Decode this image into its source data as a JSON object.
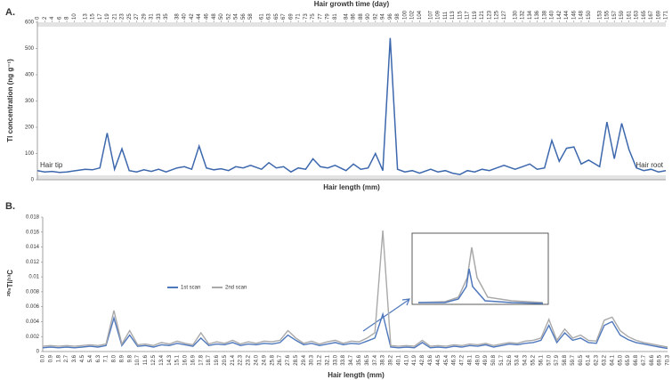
{
  "chart_data": [
    {
      "type": "line",
      "panel": "A.",
      "x2_label": "Hair growth time (day)",
      "x_label": "Hair length (mm)",
      "y_label": "Tl concentration (ng g⁻¹)",
      "annotations": [
        "Hair tip",
        "Hair root"
      ],
      "color": "#3d68ad",
      "x": [
        0,
        2,
        4,
        6,
        8,
        10,
        13,
        15,
        17,
        19,
        21,
        23,
        25,
        27,
        29,
        31,
        33,
        35,
        38,
        40,
        42,
        44,
        46,
        48,
        50,
        52,
        54,
        56,
        58,
        61,
        63,
        65,
        67,
        69,
        71,
        73,
        75,
        77,
        79,
        81,
        84,
        86,
        88,
        90,
        92,
        94,
        96,
        98,
        100,
        102,
        104,
        107,
        109,
        111,
        113,
        115,
        117,
        119,
        121,
        123,
        125,
        127,
        130,
        132,
        134,
        136,
        138,
        140,
        142,
        144,
        146,
        148,
        150,
        153,
        155,
        157,
        159,
        161,
        163,
        165,
        167,
        169,
        171
      ],
      "values": [
        35,
        30,
        32,
        28,
        30,
        34,
        40,
        38,
        45,
        178,
        40,
        118,
        35,
        30,
        38,
        32,
        40,
        30,
        45,
        50,
        40,
        128,
        45,
        38,
        42,
        35,
        50,
        45,
        55,
        40,
        65,
        45,
        50,
        30,
        45,
        40,
        80,
        50,
        45,
        55,
        35,
        60,
        40,
        45,
        100,
        35,
        540,
        40,
        30,
        35,
        25,
        40,
        30,
        35,
        25,
        20,
        35,
        30,
        40,
        35,
        45,
        55,
        40,
        50,
        60,
        40,
        45,
        150,
        70,
        120,
        125,
        60,
        75,
        50,
        220,
        80,
        215,
        115,
        45,
        35,
        40,
        30,
        35
      ],
      "xlim": [
        0,
        171
      ],
      "ylim": [
        0,
        600
      ],
      "yticks": [
        0,
        100,
        200,
        300,
        400,
        500,
        600
      ]
    },
    {
      "type": "line",
      "panel": "B.",
      "x_label": "Hair length (mm)",
      "y_label": "²⁰⁵Tl/¹³C",
      "categories": [
        "0.0",
        "0.9",
        "1.8",
        "2.7",
        "3.6",
        "4.5",
        "5.4",
        "6.3",
        "7.1",
        "8.0",
        "8.9",
        "9.8",
        "10.7",
        "11.6",
        "12.5",
        "13.4",
        "14.3",
        "15.1",
        "16.0",
        "16.9",
        "17.8",
        "18.7",
        "19.6",
        "20.5",
        "21.4",
        "22.3",
        "23.2",
        "24.0",
        "24.9",
        "25.8",
        "26.7",
        "27.6",
        "28.5",
        "29.4",
        "30.3",
        "31.2",
        "32.1",
        "33.0",
        "33.8",
        "34.7",
        "35.6",
        "36.5",
        "37.4",
        "38.3",
        "39.2",
        "40.1",
        "41.0",
        "41.9",
        "42.8",
        "43.6",
        "44.5",
        "45.4",
        "46.3",
        "47.2",
        "48.1",
        "49.0",
        "49.9",
        "50.8",
        "51.7",
        "52.6",
        "53.4",
        "54.3",
        "55.2",
        "56.1",
        "57.0",
        "57.9",
        "58.8",
        "59.7",
        "60.5",
        "61.4",
        "62.3",
        "63.2",
        "64.1",
        "65.0",
        "65.9",
        "66.8",
        "67.7",
        "68.6",
        "69.5",
        "70.3"
      ],
      "series": [
        {
          "name": "1st scan",
          "color": "#4f78bd",
          "values": [
            0.0005,
            0.0006,
            0.0005,
            0.0006,
            0.0005,
            0.0006,
            0.0007,
            0.0006,
            0.0008,
            0.0045,
            0.0008,
            0.0022,
            0.0007,
            0.0008,
            0.0006,
            0.0009,
            0.0008,
            0.0011,
            0.0009,
            0.0007,
            0.0018,
            0.0008,
            0.001,
            0.0009,
            0.0012,
            0.0008,
            0.001,
            0.0009,
            0.0011,
            0.001,
            0.0012,
            0.0022,
            0.0015,
            0.0009,
            0.0011,
            0.0008,
            0.001,
            0.0012,
            0.0009,
            0.0011,
            0.001,
            0.0014,
            0.0018,
            0.005,
            0.0006,
            0.0005,
            0.0006,
            0.0005,
            0.0012,
            0.0005,
            0.0006,
            0.0005,
            0.0007,
            0.0006,
            0.0008,
            0.0007,
            0.0009,
            0.0006,
            0.0008,
            0.001,
            0.0009,
            0.0011,
            0.0012,
            0.0015,
            0.0035,
            0.0012,
            0.0025,
            0.0015,
            0.0018,
            0.0012,
            0.0011,
            0.0035,
            0.004,
            0.0022,
            0.0016,
            0.0012,
            0.001,
            0.0008,
            0.0006,
            0.0004
          ]
        },
        {
          "name": "2nd scan",
          "color": "#a9a9a9",
          "values": [
            0.0007,
            0.0008,
            0.0007,
            0.0008,
            0.0007,
            0.0008,
            0.0009,
            0.0008,
            0.001,
            0.0055,
            0.001,
            0.0028,
            0.0009,
            0.001,
            0.0008,
            0.0012,
            0.001,
            0.0014,
            0.0011,
            0.0009,
            0.0025,
            0.001,
            0.0013,
            0.0011,
            0.0015,
            0.001,
            0.0013,
            0.0011,
            0.0014,
            0.0013,
            0.0015,
            0.0028,
            0.0018,
            0.0011,
            0.0014,
            0.001,
            0.0013,
            0.0015,
            0.0011,
            0.0014,
            0.0013,
            0.0018,
            0.0025,
            0.0162,
            0.0008,
            0.0007,
            0.0008,
            0.0007,
            0.0015,
            0.0007,
            0.0008,
            0.0007,
            0.0009,
            0.0008,
            0.001,
            0.0009,
            0.0011,
            0.0008,
            0.001,
            0.0012,
            0.0011,
            0.0014,
            0.0015,
            0.0018,
            0.0043,
            0.0015,
            0.003,
            0.0018,
            0.0022,
            0.0015,
            0.0014,
            0.0042,
            0.0046,
            0.0028,
            0.002,
            0.0015,
            0.0012,
            0.001,
            0.0008,
            0.0006
          ]
        }
      ],
      "ylim": [
        0,
        0.018
      ],
      "yticks": [
        0,
        0.002,
        0.004,
        0.006,
        0.008,
        0.01,
        0.012,
        0.014,
        0.016,
        0.018
      ]
    }
  ]
}
